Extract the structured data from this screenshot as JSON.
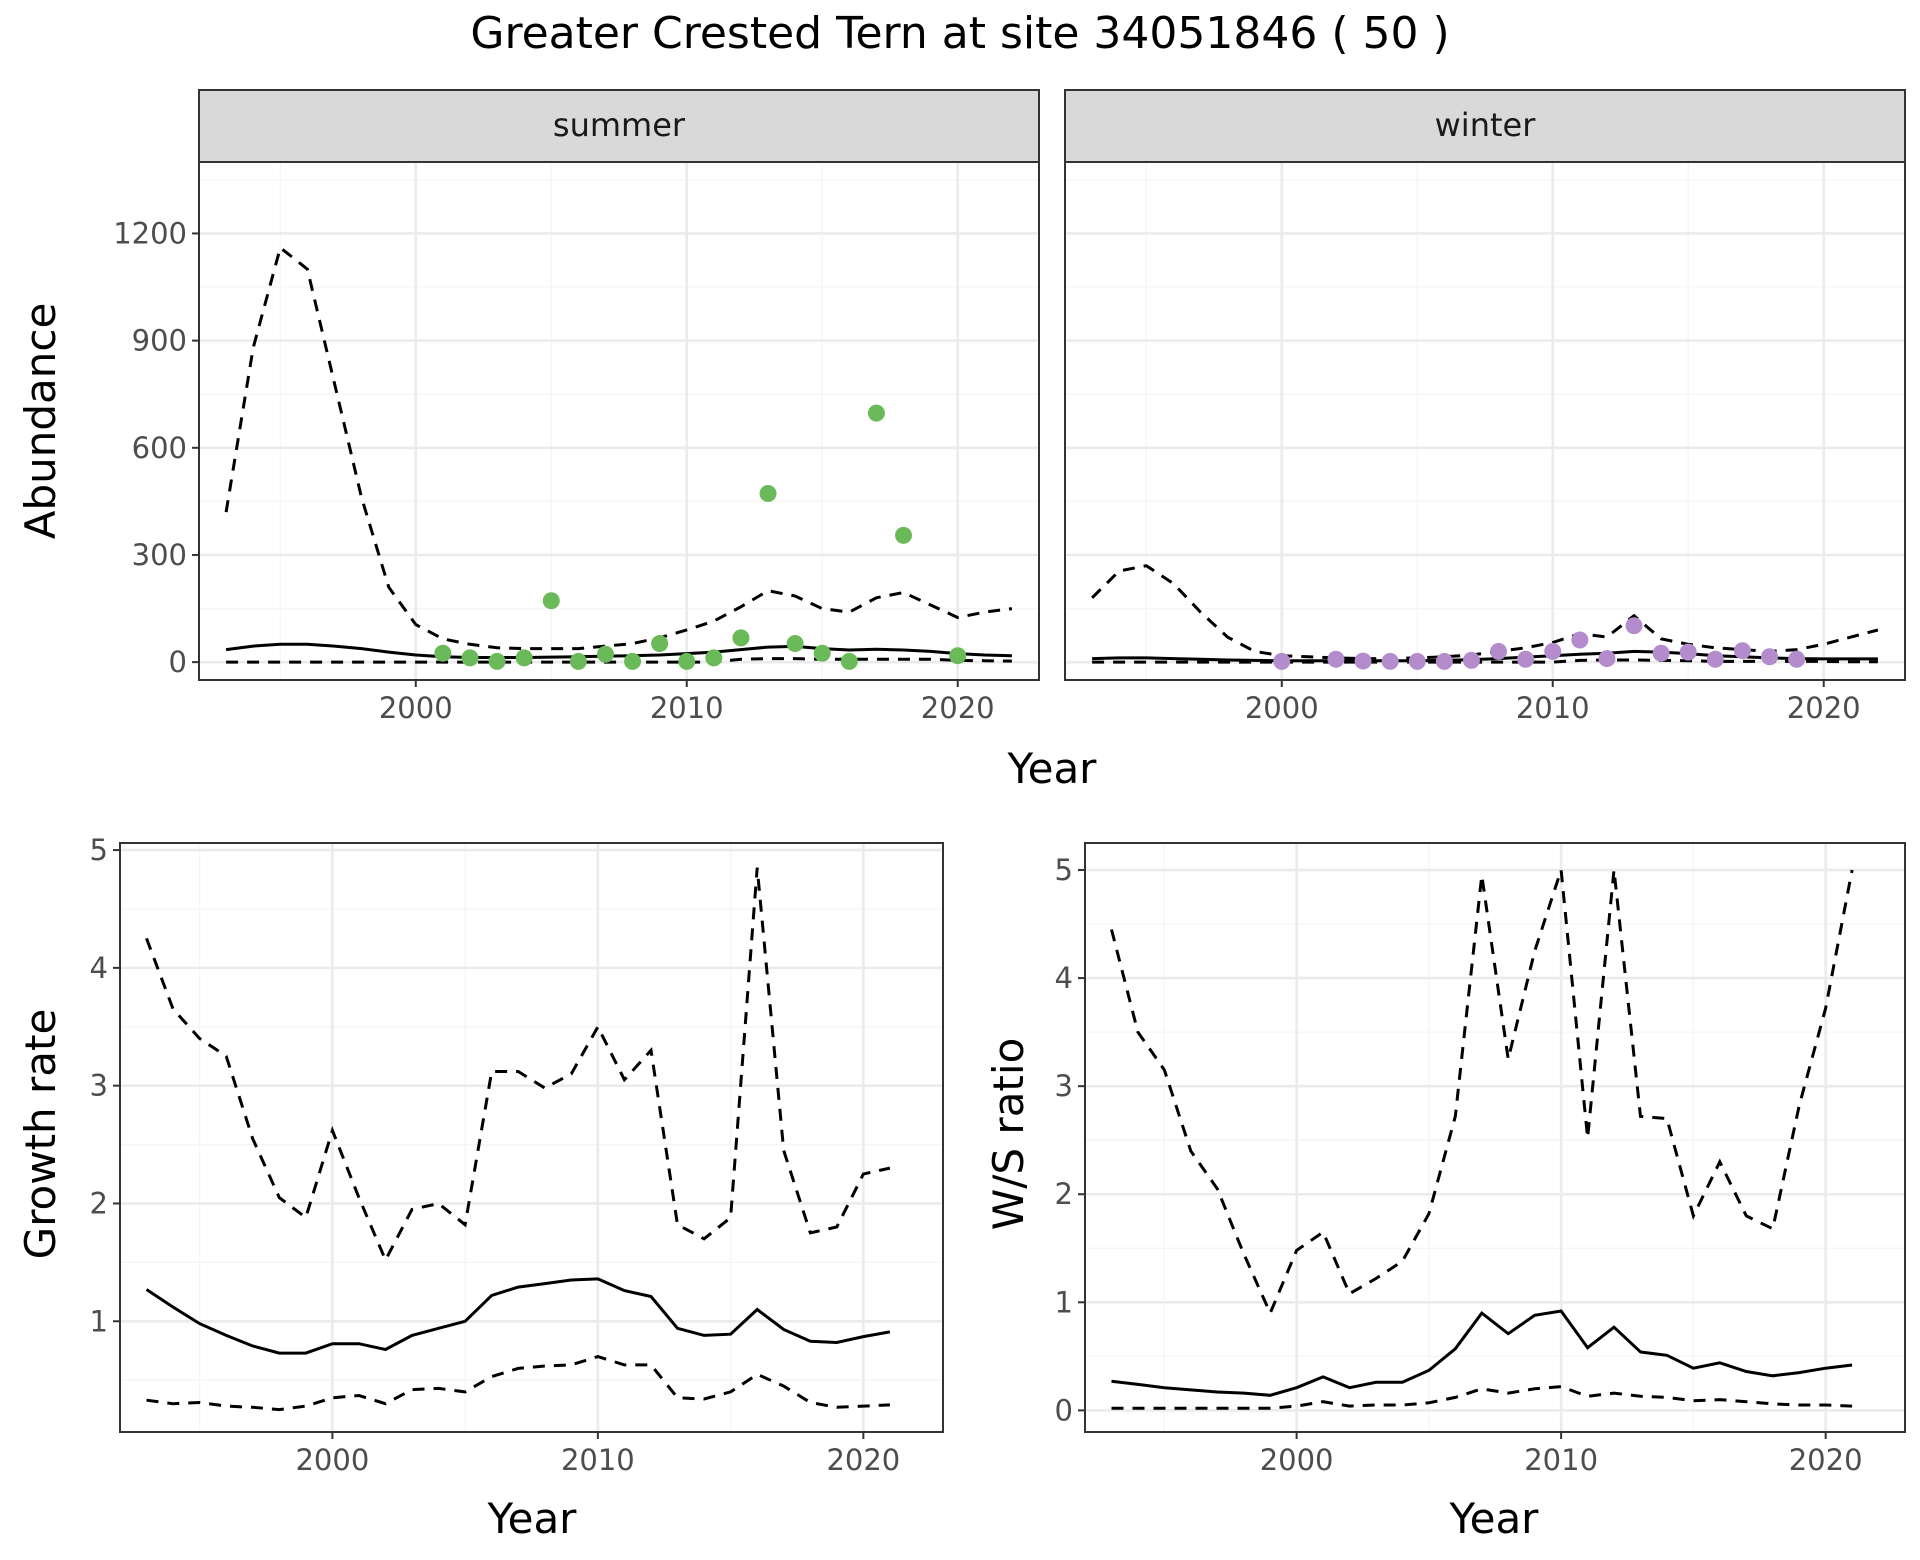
{
  "figure_title": "Greater Crested Tern at site 34051846 ( 50 )",
  "colors": {
    "summer_points": "#6bba5a",
    "winter_points": "#b48ccc",
    "line": "#000000",
    "strip_fill": "#d9d9d9",
    "grid_major": "#ebebeb",
    "grid_minor": "#f5f5f5"
  },
  "chart_data": [
    {
      "type": "line",
      "panel": "abundance",
      "facets": [
        "summer",
        "winter"
      ],
      "xlabel": "Year",
      "ylabel": "Abundance",
      "xlim": [
        1992,
        2023
      ],
      "ylim": [
        -50,
        1400
      ],
      "xticks": [
        2000,
        2010,
        2020
      ],
      "yticks": [
        0,
        300,
        600,
        900,
        1200
      ],
      "grid": true,
      "summer": {
        "x": [
          1993,
          1994,
          1995,
          1996,
          1997,
          1998,
          1999,
          2000,
          2001,
          2002,
          2003,
          2004,
          2005,
          2006,
          2007,
          2008,
          2009,
          2010,
          2011,
          2012,
          2013,
          2014,
          2015,
          2016,
          2017,
          2018,
          2019,
          2020,
          2021,
          2022
        ],
        "mean": [
          35,
          45,
          50,
          50,
          45,
          38,
          28,
          20,
          15,
          13,
          13,
          13,
          14,
          15,
          17,
          18,
          20,
          24,
          28,
          35,
          42,
          44,
          38,
          34,
          36,
          34,
          30,
          24,
          20,
          18
        ],
        "upper": [
          420,
          880,
          1160,
          1100,
          780,
          460,
          210,
          105,
          65,
          50,
          40,
          38,
          38,
          38,
          45,
          52,
          68,
          90,
          115,
          155,
          200,
          185,
          150,
          140,
          180,
          195,
          160,
          125,
          140,
          150
        ],
        "lower": [
          0,
          0,
          0,
          0,
          0,
          0,
          0,
          0,
          0,
          0,
          0,
          0,
          0,
          0,
          0,
          0,
          0,
          0,
          0,
          8,
          10,
          10,
          8,
          8,
          8,
          8,
          8,
          5,
          4,
          3
        ],
        "obs_x": [
          2001,
          2002,
          2003,
          2004,
          2005,
          2006,
          2007,
          2008,
          2009,
          2010,
          2011,
          2012,
          2013,
          2014,
          2015,
          2016,
          2017,
          2018,
          2020
        ],
        "obs_y": [
          25,
          12,
          2,
          12,
          172,
          2,
          22,
          2,
          52,
          2,
          12,
          68,
          472,
          52,
          25,
          2,
          697,
          355,
          18
        ]
      },
      "winter": {
        "x": [
          1993,
          1994,
          1995,
          1996,
          1997,
          1998,
          1999,
          2000,
          2001,
          2002,
          2003,
          2004,
          2005,
          2006,
          2007,
          2008,
          2009,
          2010,
          2011,
          2012,
          2013,
          2014,
          2015,
          2016,
          2017,
          2018,
          2019,
          2020,
          2021,
          2022
        ],
        "mean": [
          10,
          12,
          12,
          10,
          8,
          6,
          5,
          4,
          4,
          4,
          4,
          4,
          4,
          5,
          7,
          10,
          14,
          18,
          22,
          25,
          30,
          28,
          24,
          18,
          15,
          12,
          10,
          9,
          9,
          9
        ],
        "upper": [
          180,
          255,
          270,
          220,
          140,
          70,
          30,
          18,
          15,
          12,
          10,
          10,
          12,
          15,
          20,
          30,
          40,
          55,
          80,
          70,
          130,
          65,
          50,
          40,
          35,
          30,
          35,
          50,
          70,
          90
        ],
        "lower": [
          0,
          0,
          0,
          0,
          0,
          0,
          0,
          0,
          0,
          0,
          0,
          0,
          0,
          0,
          0,
          0,
          0,
          0,
          5,
          6,
          6,
          5,
          4,
          2,
          2,
          2,
          2,
          2,
          1,
          1
        ],
        "obs_x": [
          2000,
          2002,
          2003,
          2004,
          2005,
          2006,
          2007,
          2008,
          2009,
          2010,
          2011,
          2012,
          2013,
          2014,
          2015,
          2016,
          2017,
          2018,
          2019
        ],
        "obs_y": [
          2,
          8,
          3,
          2,
          2,
          2,
          5,
          30,
          8,
          30,
          62,
          10,
          102,
          25,
          28,
          8,
          32,
          15,
          8
        ]
      }
    },
    {
      "type": "line",
      "panel": "growth",
      "xlabel": "Year",
      "ylabel": "Growth rate",
      "xlim": [
        1992,
        2023
      ],
      "ylim": [
        0.06,
        5.06
      ],
      "xticks": [
        2000,
        2010,
        2020
      ],
      "yticks": [
        1,
        2,
        3,
        4,
        5
      ],
      "grid": true,
      "x": [
        1993,
        1994,
        1995,
        1996,
        1997,
        1998,
        1999,
        2000,
        2001,
        2002,
        2003,
        2004,
        2005,
        2006,
        2007,
        2008,
        2009,
        2010,
        2011,
        2012,
        2013,
        2014,
        2015,
        2016,
        2017,
        2018,
        2019,
        2020,
        2021
      ],
      "mean": [
        1.27,
        1.12,
        0.98,
        0.88,
        0.79,
        0.73,
        0.73,
        0.81,
        0.81,
        0.76,
        0.88,
        0.94,
        1.0,
        1.22,
        1.29,
        1.32,
        1.35,
        1.36,
        1.26,
        1.21,
        0.94,
        0.88,
        0.89,
        1.1,
        0.93,
        0.83,
        0.82,
        0.87,
        0.91
      ],
      "upper": [
        4.25,
        3.65,
        3.4,
        3.25,
        2.55,
        2.05,
        1.88,
        2.62,
        2.05,
        1.52,
        1.95,
        2.0,
        1.82,
        3.12,
        3.12,
        2.98,
        3.1,
        3.5,
        3.05,
        3.3,
        1.82,
        1.7,
        1.88,
        4.85,
        2.45,
        1.75,
        1.8,
        2.25,
        2.3
      ],
      "lower": [
        0.33,
        0.3,
        0.31,
        0.28,
        0.27,
        0.25,
        0.28,
        0.35,
        0.37,
        0.3,
        0.42,
        0.43,
        0.4,
        0.53,
        0.6,
        0.62,
        0.63,
        0.7,
        0.63,
        0.63,
        0.35,
        0.34,
        0.4,
        0.55,
        0.45,
        0.31,
        0.27,
        0.28,
        0.29
      ]
    },
    {
      "type": "line",
      "panel": "ratio",
      "xlabel": "Year",
      "ylabel": "W/S ratio",
      "xlim": [
        1992,
        2023
      ],
      "ylim": [
        -0.2,
        5.25
      ],
      "xticks": [
        2000,
        2010,
        2020
      ],
      "yticks": [
        0,
        1,
        2,
        3,
        4,
        5
      ],
      "grid": true,
      "x": [
        1993,
        1994,
        1995,
        1996,
        1997,
        1998,
        1999,
        2000,
        2001,
        2002,
        2003,
        2004,
        2005,
        2006,
        2007,
        2008,
        2009,
        2010,
        2011,
        2012,
        2013,
        2014,
        2015,
        2016,
        2017,
        2018,
        2019,
        2020,
        2021
      ],
      "mean": [
        0.27,
        0.24,
        0.21,
        0.19,
        0.17,
        0.16,
        0.14,
        0.21,
        0.31,
        0.21,
        0.26,
        0.26,
        0.37,
        0.57,
        0.9,
        0.71,
        0.88,
        0.92,
        0.58,
        0.77,
        0.54,
        0.51,
        0.39,
        0.44,
        0.36,
        0.32,
        0.35,
        0.39,
        0.42
      ],
      "upper": [
        4.45,
        3.5,
        3.15,
        2.4,
        2.05,
        1.45,
        0.9,
        1.48,
        1.65,
        1.08,
        1.22,
        1.38,
        1.82,
        2.72,
        4.95,
        3.25,
        4.25,
        5.0,
        2.52,
        5.0,
        2.72,
        2.7,
        1.8,
        2.3,
        1.8,
        1.68,
        2.82,
        3.72,
        5.0
      ],
      "lower": [
        0.02,
        0.02,
        0.02,
        0.02,
        0.02,
        0.02,
        0.02,
        0.04,
        0.08,
        0.04,
        0.05,
        0.05,
        0.07,
        0.12,
        0.2,
        0.16,
        0.2,
        0.22,
        0.13,
        0.16,
        0.13,
        0.12,
        0.09,
        0.1,
        0.08,
        0.06,
        0.05,
        0.05,
        0.04
      ]
    }
  ]
}
